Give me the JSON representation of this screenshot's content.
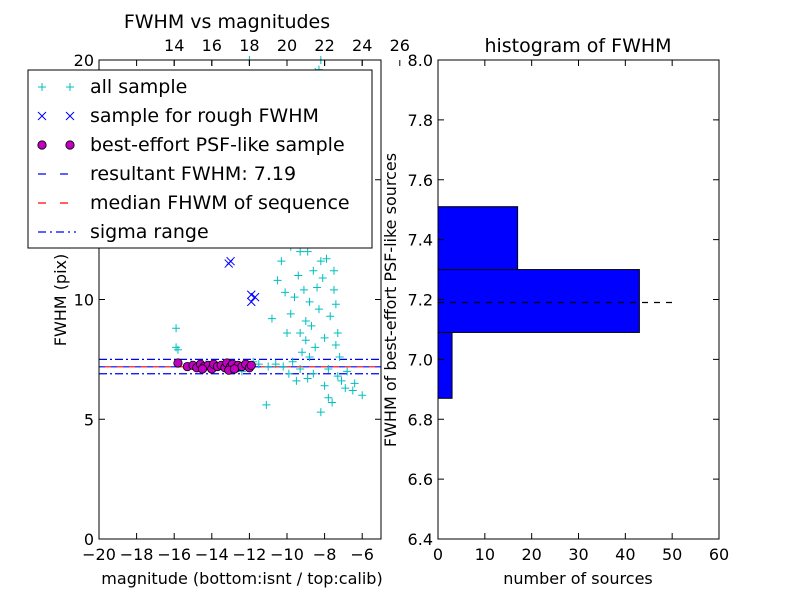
{
  "chart_data": [
    {
      "type": "scatter",
      "title": "FWHM vs magnitudes",
      "xlabel": "magnitude (bottom:isnt / top:calib)",
      "ylabel": "FWHM (pix)",
      "xlim": [
        -20,
        -5
      ],
      "ylim": [
        0,
        20
      ],
      "xticks": [
        "−20",
        "−18",
        "−16",
        "−14",
        "−12",
        "−10",
        "−8",
        "−6"
      ],
      "xtick_values": [
        -20,
        -18,
        -16,
        -14,
        -12,
        -10,
        -8,
        -6
      ],
      "yticks": [
        "0",
        "5",
        "10",
        "15",
        "20"
      ],
      "ytick_values": [
        0,
        5,
        10,
        15,
        20
      ],
      "top_axis": {
        "ticks": [
          "14",
          "16",
          "18",
          "20",
          "22",
          "24",
          "26"
        ],
        "tick_values_bottom_units": [
          -16.0,
          -14.0,
          -12.0,
          -10.0,
          -8.0,
          -6.0,
          -4.0
        ]
      },
      "legend_position": "top-left",
      "series": [
        {
          "name": "all sample",
          "marker": "+",
          "color": "#00bfbf",
          "points": [
            [
              -15.9,
              8.8
            ],
            [
              -15.9,
              8.0
            ],
            [
              -15.8,
              7.9
            ],
            [
              -15.1,
              7.3
            ],
            [
              -14.8,
              7.2
            ],
            [
              -13.6,
              7.2
            ],
            [
              -12.9,
              7.3
            ],
            [
              -12.3,
              7.2
            ],
            [
              -11.5,
              7.3
            ],
            [
              -11.0,
              7.2
            ],
            [
              -11.1,
              5.6
            ],
            [
              -10.8,
              9.2
            ],
            [
              -10.5,
              10.8
            ],
            [
              -10.3,
              11.6
            ],
            [
              -10.5,
              12.4
            ],
            [
              -10.2,
              13.0
            ],
            [
              -10.0,
              8.6
            ],
            [
              -9.8,
              9.4
            ],
            [
              -9.6,
              10.1
            ],
            [
              -9.4,
              11.0
            ],
            [
              -9.3,
              12.0
            ],
            [
              -9.1,
              13.2
            ],
            [
              -9.0,
              14.6
            ],
            [
              -9.2,
              7.8
            ],
            [
              -9.5,
              6.6
            ],
            [
              -9.0,
              8.3
            ],
            [
              -8.8,
              9.9
            ],
            [
              -8.6,
              11.2
            ],
            [
              -8.5,
              12.6
            ],
            [
              -8.4,
              13.8
            ],
            [
              -8.3,
              14.8
            ],
            [
              -8.2,
              16.0
            ],
            [
              -8.0,
              17.2
            ],
            [
              -8.1,
              18.4
            ],
            [
              -8.3,
              19.6
            ],
            [
              -8.2,
              20.0
            ],
            [
              -8.5,
              19.5
            ],
            [
              -7.9,
              15.6
            ],
            [
              -7.8,
              14.2
            ],
            [
              -7.6,
              12.6
            ],
            [
              -7.5,
              11.2
            ],
            [
              -7.4,
              9.8
            ],
            [
              -7.3,
              8.6
            ],
            [
              -7.2,
              7.6
            ],
            [
              -7.1,
              6.6
            ],
            [
              -6.9,
              6.3
            ],
            [
              -6.5,
              6.2
            ],
            [
              -6.0,
              6.0
            ],
            [
              -7.6,
              5.7
            ],
            [
              -7.8,
              5.9
            ],
            [
              -8.2,
              5.3
            ],
            [
              -8.0,
              6.4
            ],
            [
              -8.6,
              6.9
            ],
            [
              -8.8,
              7.6
            ],
            [
              -9.3,
              7.1
            ],
            [
              -9.7,
              7.4
            ],
            [
              -10.2,
              7.2
            ],
            [
              -12.0,
              20.0
            ],
            [
              -11.6,
              19.3
            ],
            [
              -11.0,
              16.5
            ],
            [
              -10.6,
              14.9
            ],
            [
              -12.7,
              13.5
            ],
            [
              -11.9,
              15.8
            ],
            [
              -9.6,
              15.4
            ],
            [
              -9.4,
              16.8
            ],
            [
              -8.7,
              17.6
            ],
            [
              -8.9,
              16.3
            ],
            [
              -8.1,
              10.9
            ],
            [
              -8.3,
              9.6
            ],
            [
              -8.0,
              8.4
            ],
            [
              -7.7,
              9.3
            ],
            [
              -7.9,
              11.7
            ],
            [
              -8.4,
              10.5
            ],
            [
              -8.7,
              8.9
            ],
            [
              -9.1,
              10.4
            ],
            [
              -9.8,
              12.2
            ],
            [
              -10.1,
              10.3
            ],
            [
              -8.6,
              14.3
            ],
            [
              -8.4,
              12.9
            ],
            [
              -8.2,
              11.6
            ],
            [
              -7.7,
              13.3
            ],
            [
              -7.5,
              10.4
            ],
            [
              -7.4,
              8.1
            ],
            [
              -7.8,
              7.1
            ],
            [
              -8.5,
              8.0
            ],
            [
              -9.0,
              9.1
            ],
            [
              -9.3,
              8.6
            ],
            [
              -8.9,
              12.0
            ],
            [
              -8.1,
              13.4
            ],
            [
              -7.9,
              12.5
            ],
            [
              -12.4,
              7.0
            ],
            [
              -13.2,
              7.1
            ],
            [
              -14.3,
              7.3
            ],
            [
              -11.8,
              7.4
            ],
            [
              -10.6,
              7.3
            ],
            [
              -9.9,
              6.9
            ],
            [
              -8.9,
              6.7
            ],
            [
              -7.3,
              6.8
            ],
            [
              -6.8,
              7.0
            ],
            [
              -6.4,
              6.5
            ]
          ]
        },
        {
          "name": "sample for rough FWHM",
          "marker": "x",
          "color": "#0000ff",
          "points": [
            [
              -13.0,
              11.6
            ],
            [
              -13.1,
              11.5
            ],
            [
              -11.9,
              10.2
            ],
            [
              -11.9,
              9.9
            ],
            [
              -11.7,
              10.1
            ]
          ]
        },
        {
          "name": "best-effort PSF-like sample",
          "marker": "o",
          "color": "#bf00bf",
          "points": [
            [
              -15.8,
              7.35
            ],
            [
              -15.3,
              7.2
            ],
            [
              -15.0,
              7.25
            ],
            [
              -14.8,
              7.15
            ],
            [
              -14.6,
              7.3
            ],
            [
              -14.4,
              7.2
            ],
            [
              -14.2,
              7.25
            ],
            [
              -14.0,
              7.1
            ],
            [
              -13.9,
              7.3
            ],
            [
              -13.7,
              7.2
            ],
            [
              -13.5,
              7.25
            ],
            [
              -13.3,
              7.15
            ],
            [
              -13.2,
              7.35
            ],
            [
              -13.0,
              7.2
            ],
            [
              -12.9,
              7.3
            ],
            [
              -12.7,
              7.15
            ],
            [
              -12.6,
              7.25
            ],
            [
              -12.4,
              7.2
            ],
            [
              -12.2,
              7.3
            ],
            [
              -12.0,
              7.15
            ],
            [
              -11.9,
              7.25
            ],
            [
              -13.1,
              7.05
            ],
            [
              -14.5,
              7.1
            ],
            [
              -12.8,
              7.1
            ]
          ]
        }
      ],
      "hlines": [
        {
          "name": "resultant FWHM: 7.19",
          "y": 7.19,
          "color": "#0000ff",
          "style": "dashed"
        },
        {
          "name": "median FHWM of sequence",
          "y": 7.19,
          "color": "#ff0000",
          "style": "dashed"
        },
        {
          "name": "sigma range",
          "y": 6.9,
          "color": "#0000ff",
          "style": "dashdot"
        },
        {
          "name": "sigma range",
          "y": 7.5,
          "color": "#0000ff",
          "style": "dashdot"
        }
      ]
    },
    {
      "type": "bar",
      "orientation": "horizontal",
      "title": "histogram of FWHM",
      "xlabel": "number of sources",
      "ylabel": "FWHM of best-effort PSF-like sources",
      "xlim": [
        0,
        60
      ],
      "ylim": [
        6.4,
        8.0
      ],
      "xticks": [
        "0",
        "10",
        "20",
        "30",
        "40",
        "50",
        "60"
      ],
      "xtick_values": [
        0,
        10,
        20,
        30,
        40,
        50,
        60
      ],
      "yticks": [
        "6.4",
        "6.6",
        "6.8",
        "7.0",
        "7.2",
        "7.4",
        "7.6",
        "7.8",
        "8.0"
      ],
      "ytick_values": [
        6.4,
        6.6,
        6.8,
        7.0,
        7.2,
        7.4,
        7.6,
        7.8,
        8.0
      ],
      "bar_color": "#0000ff",
      "bins": [
        {
          "lo": 6.87,
          "hi": 7.09,
          "count": 3
        },
        {
          "lo": 7.09,
          "hi": 7.3,
          "count": 43
        },
        {
          "lo": 7.3,
          "hi": 7.51,
          "count": 17
        }
      ],
      "reference_line": {
        "y": 7.19,
        "x_range": [
          0,
          51
        ],
        "color": "#000000",
        "style": "dashed"
      }
    }
  ]
}
